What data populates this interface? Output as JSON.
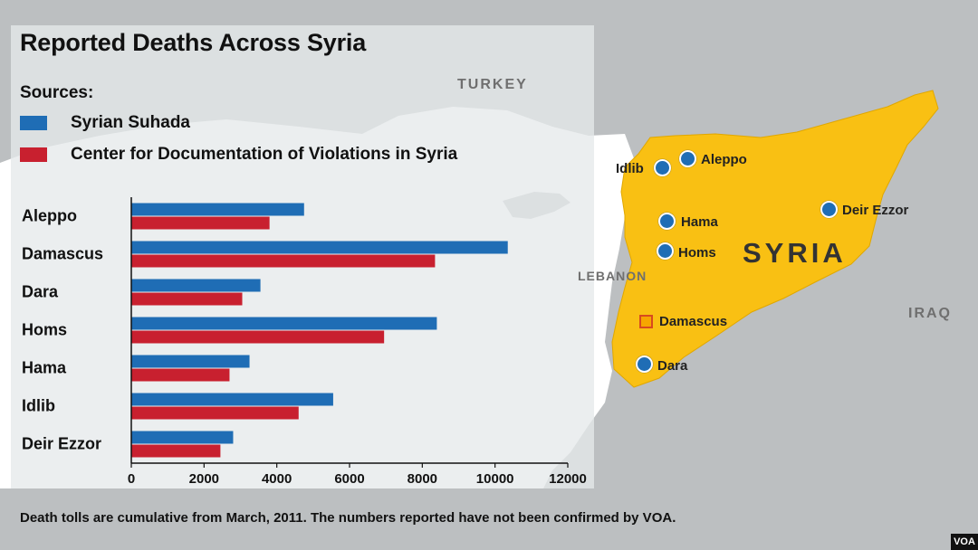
{
  "title": "Reported Deaths Across Syria",
  "sources_heading": "Sources:",
  "footnote": "Death tolls are cumulative from March, 2011.  The numbers reported have not been confirmed by VOA.",
  "badge": "VOA",
  "colors": {
    "series_1": "#1f6db5",
    "series_2": "#c8202f",
    "syria_fill": "#f9c013",
    "panel": "#e6e9eb",
    "land": "#bcbfc1",
    "sea": "#ffffff"
  },
  "map": {
    "countries": {
      "turkey": "TURKEY",
      "lebanon": "LEBANON",
      "iraq": "IRAQ",
      "syria": "SYRIA"
    },
    "cities": [
      {
        "key": "idlib",
        "label": "Idlib",
        "marker": "dot"
      },
      {
        "key": "aleppo",
        "label": "Aleppo",
        "marker": "dot"
      },
      {
        "key": "deir-ezzor",
        "label": "Deir Ezzor",
        "marker": "dot"
      },
      {
        "key": "hama",
        "label": "Hama",
        "marker": "dot"
      },
      {
        "key": "homs",
        "label": "Homs",
        "marker": "dot"
      },
      {
        "key": "damascus",
        "label": "Damascus",
        "marker": "square"
      },
      {
        "key": "dara",
        "label": "Dara",
        "marker": "dot"
      }
    ]
  },
  "chart_data": {
    "type": "bar",
    "orientation": "horizontal",
    "title": "Reported Deaths Across Syria",
    "categories": [
      "Aleppo",
      "Damascus",
      "Dara",
      "Homs",
      "Hama",
      "Idlib",
      "Deir Ezzor"
    ],
    "series": [
      {
        "name": "Syrian Suhada",
        "color": "#1f6db5",
        "values": [
          4750,
          10350,
          3550,
          8400,
          3250,
          5550,
          2800
        ]
      },
      {
        "name": "Center for Documentation of Violations in Syria",
        "color": "#c8202f",
        "values": [
          3800,
          8350,
          3050,
          6950,
          2700,
          4600,
          2450
        ]
      }
    ],
    "xlim": [
      0,
      12000
    ],
    "xticks": [
      0,
      2000,
      4000,
      6000,
      8000,
      10000,
      12000
    ],
    "xlabel": "",
    "ylabel": "",
    "grid": false,
    "legend": "top-left"
  }
}
